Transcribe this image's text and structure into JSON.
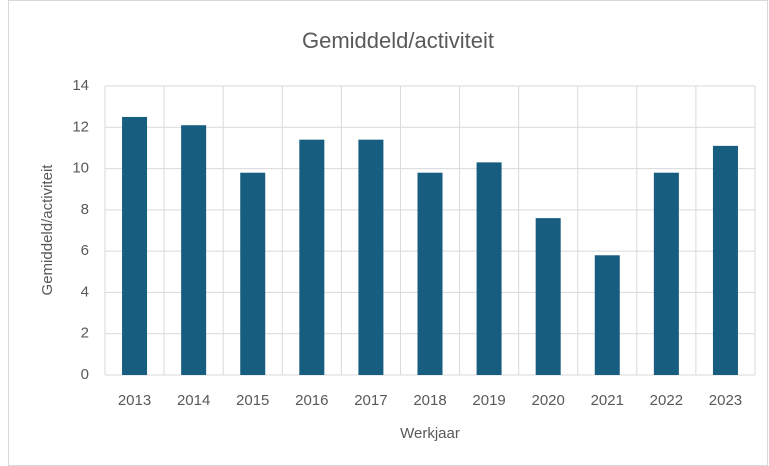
{
  "chart_data": {
    "type": "bar",
    "title": "Gemiddeld/activiteit",
    "x_label": "Werkjaar",
    "y_label": "Gemiddeld/activiteit",
    "categories": [
      "2013",
      "2014",
      "2015",
      "2016",
      "2017",
      "2018",
      "2019",
      "2020",
      "2021",
      "2022",
      "2023"
    ],
    "values": [
      12.5,
      12.1,
      9.8,
      11.4,
      11.4,
      9.8,
      10.3,
      7.6,
      5.8,
      9.8,
      11.1
    ],
    "color": "#175d7f",
    "ylim": [
      0,
      14
    ],
    "yticks": [
      0,
      2,
      4,
      6,
      8,
      10,
      12,
      14
    ],
    "grid": true
  }
}
